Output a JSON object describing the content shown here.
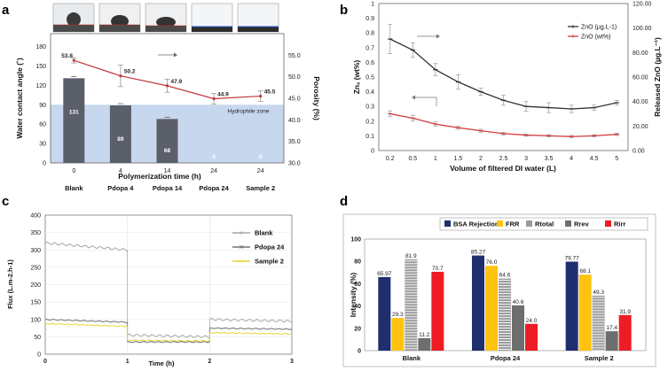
{
  "panels": {
    "a": {
      "letter": "a",
      "chart_data": {
        "type": "bar",
        "ylabel_left": "Water contact angle (˚)",
        "ylabel_right": "Porosity (%)",
        "xlabel": "Polymerization time (h)",
        "x_time_labels": [
          "0",
          "4",
          "14",
          "24",
          "24"
        ],
        "categories": [
          "Blank",
          "Pdopa 4",
          "Pdopa 14",
          "Pdopa 24",
          "Sample 2"
        ],
        "contact_angle": [
          131,
          89,
          68,
          0,
          0
        ],
        "contact_angle_labels": [
          "131",
          "89",
          "68",
          "0",
          "0"
        ],
        "porosity": [
          53.8,
          50.2,
          47.9,
          44.9,
          45.5
        ],
        "porosity_labels": [
          "53.8",
          "50.2",
          "47.9",
          "44.9",
          "45.5"
        ],
        "porosity_err": [
          0.6,
          2.5,
          1.5,
          1.2,
          1.2
        ],
        "ylim_left": [
          0,
          200
        ],
        "yticks_left": [
          "0",
          "30",
          "60",
          "90",
          "120",
          "150",
          "180"
        ],
        "ylim_right": [
          30,
          60
        ],
        "yticks_right": [
          "30.0",
          "35.0",
          "40.0",
          "45.0",
          "50.0",
          "55.0"
        ],
        "hydrophile_threshold": 90,
        "zone_label": "Hydrophile zone",
        "bar_color": "#5b5f6a",
        "zone_color": "#c6d7ee",
        "line_color": "#c0393b"
      }
    },
    "b": {
      "letter": "b",
      "chart_data": {
        "type": "line",
        "x": [
          "0.2",
          "0.5",
          "1",
          "1.5",
          "2",
          "2.5",
          "3",
          "3.5",
          "4",
          "4.5",
          "5"
        ],
        "xlabel": "Volume of filtered DI water (L)",
        "ylabel_left": "Znₓ (wt%)",
        "ylabel_right": "Released ZnO (µg.L⁻¹)",
        "ylim_left": [
          0,
          1
        ],
        "yticks_left": [
          "0",
          "0.1",
          "0.2",
          "0.3",
          "0.4",
          "0.5",
          "0.6",
          "0.7",
          "0.8",
          "0.9",
          "1"
        ],
        "ylim_right": [
          0,
          120
        ],
        "yticks_right": [
          "0.00",
          "20.00",
          "40.00",
          "60.00",
          "80.00",
          "100.00",
          "120.00"
        ],
        "series": [
          {
            "name": "ZnO (µg.L-1)",
            "axis": "right",
            "color": "#333333",
            "values": [
              91,
              82,
              66,
              56,
              48,
              41,
              36,
              35,
              34,
              35,
              39
            ],
            "err": [
              12,
              6,
              5,
              6,
              3,
              4,
              4,
              4,
              3,
              2,
              2
            ]
          },
          {
            "name": "ZnO (wt%)",
            "axis": "left",
            "color": "#d23a3a",
            "values": [
              0.25,
              0.22,
              0.18,
              0.155,
              0.135,
              0.115,
              0.105,
              0.1,
              0.095,
              0.1,
              0.11
            ],
            "err": [
              0.02,
              0.02,
              0.015,
              0.01,
              0.01,
              0.01,
              0.008,
              0.008,
              0.008,
              0.008,
              0.008
            ]
          }
        ]
      }
    },
    "c": {
      "letter": "c",
      "chart_data": {
        "type": "line",
        "xlabel": "Time (h)",
        "ylabel": "Flux (L.m-2.h-1)",
        "xlim": [
          0,
          3
        ],
        "xticks": [
          "0",
          "1",
          "2",
          "3"
        ],
        "ylim": [
          0,
          400
        ],
        "yticks": [
          "0",
          "50",
          "100",
          "150",
          "200",
          "250",
          "300",
          "350",
          "400"
        ],
        "series": [
          {
            "name": "Blank",
            "color": "#a8a8a8",
            "segments": [
              [
                0,
                1,
                320,
                300
              ],
              [
                1,
                2,
                55,
                50
              ],
              [
                2,
                3,
                100,
                95
              ]
            ]
          },
          {
            "name": "Pdopa 24",
            "color": "#707070",
            "segments": [
              [
                0,
                1,
                100,
                92
              ],
              [
                1,
                2,
                35,
                35
              ],
              [
                2,
                3,
                75,
                72
              ]
            ]
          },
          {
            "name": "Sample 2",
            "color": "#e8d436",
            "segments": [
              [
                0,
                1,
                88,
                80
              ],
              [
                1,
                2,
                40,
                38
              ],
              [
                2,
                3,
                62,
                58
              ]
            ]
          }
        ]
      }
    },
    "d": {
      "letter": "d",
      "chart_data": {
        "type": "bar",
        "ylabel": "Intensity (%)",
        "ylim": [
          0,
          100
        ],
        "yticks": [
          "0",
          "20",
          "40",
          "60",
          "80",
          "100"
        ],
        "categories": [
          "Blank",
          "Pdopa 24",
          "Sample 2"
        ],
        "series": [
          {
            "name": "BSA Rejection",
            "color": "#1f2f6e",
            "values": [
              65.97,
              85.27,
              79.77
            ],
            "labels": [
              "65.97",
              "85.27",
              "79.77"
            ]
          },
          {
            "name": "FRR",
            "color": "#ffc20e",
            "values": [
              29.3,
              76.0,
              68.1
            ],
            "labels": [
              "29.3",
              "76.0",
              "68.1"
            ]
          },
          {
            "name": "Rtotal",
            "color": "#9a9a9a",
            "values": [
              81.9,
              64.6,
              49.3
            ],
            "labels": [
              "81.9",
              "64.6",
              "49.3"
            ]
          },
          {
            "name": "Rrev",
            "color": "#6e6e6e",
            "values": [
              11.2,
              40.6,
              17.4
            ],
            "labels": [
              "11.2",
              "40.6",
              "17.4"
            ]
          },
          {
            "name": "Rirr",
            "color": "#ee1c25",
            "values": [
              70.7,
              24.0,
              31.9
            ],
            "labels": [
              "70.7",
              "24.0",
              "31.9"
            ]
          }
        ]
      }
    }
  }
}
